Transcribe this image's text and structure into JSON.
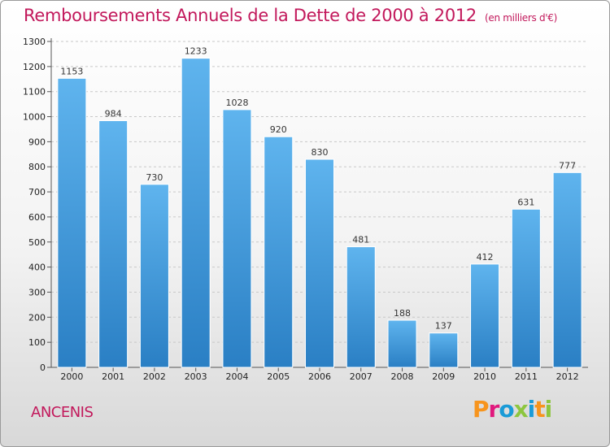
{
  "header": {
    "title": "Remboursements Annuels de la Dette de 2000 à 2012",
    "subtitle": "(en milliers d'€)"
  },
  "footer": {
    "city": "ANCENIS",
    "brand": "Proxiti"
  },
  "colors": {
    "title": "#c2185b",
    "bar_top": "#5fb4ee",
    "bar_bottom": "#2a7fc4",
    "brand": [
      "#f7941d",
      "#e0197d",
      "#1a9bd7",
      "#8dc63f",
      "#1a9bd7",
      "#f7941d",
      "#8dc63f"
    ]
  },
  "chart_data": {
    "type": "bar",
    "categories": [
      "2000",
      "2001",
      "2002",
      "2003",
      "2004",
      "2005",
      "2006",
      "2007",
      "2008",
      "2009",
      "2010",
      "2011",
      "2012"
    ],
    "values": [
      1153,
      984,
      730,
      1233,
      1028,
      920,
      830,
      481,
      188,
      137,
      412,
      631,
      777
    ],
    "ylim": [
      0,
      1300
    ],
    "yticks": [
      0,
      100,
      200,
      300,
      400,
      500,
      600,
      700,
      800,
      900,
      1000,
      1100,
      1200,
      1300
    ],
    "grid": "dashed horizontal",
    "legend": "none"
  }
}
